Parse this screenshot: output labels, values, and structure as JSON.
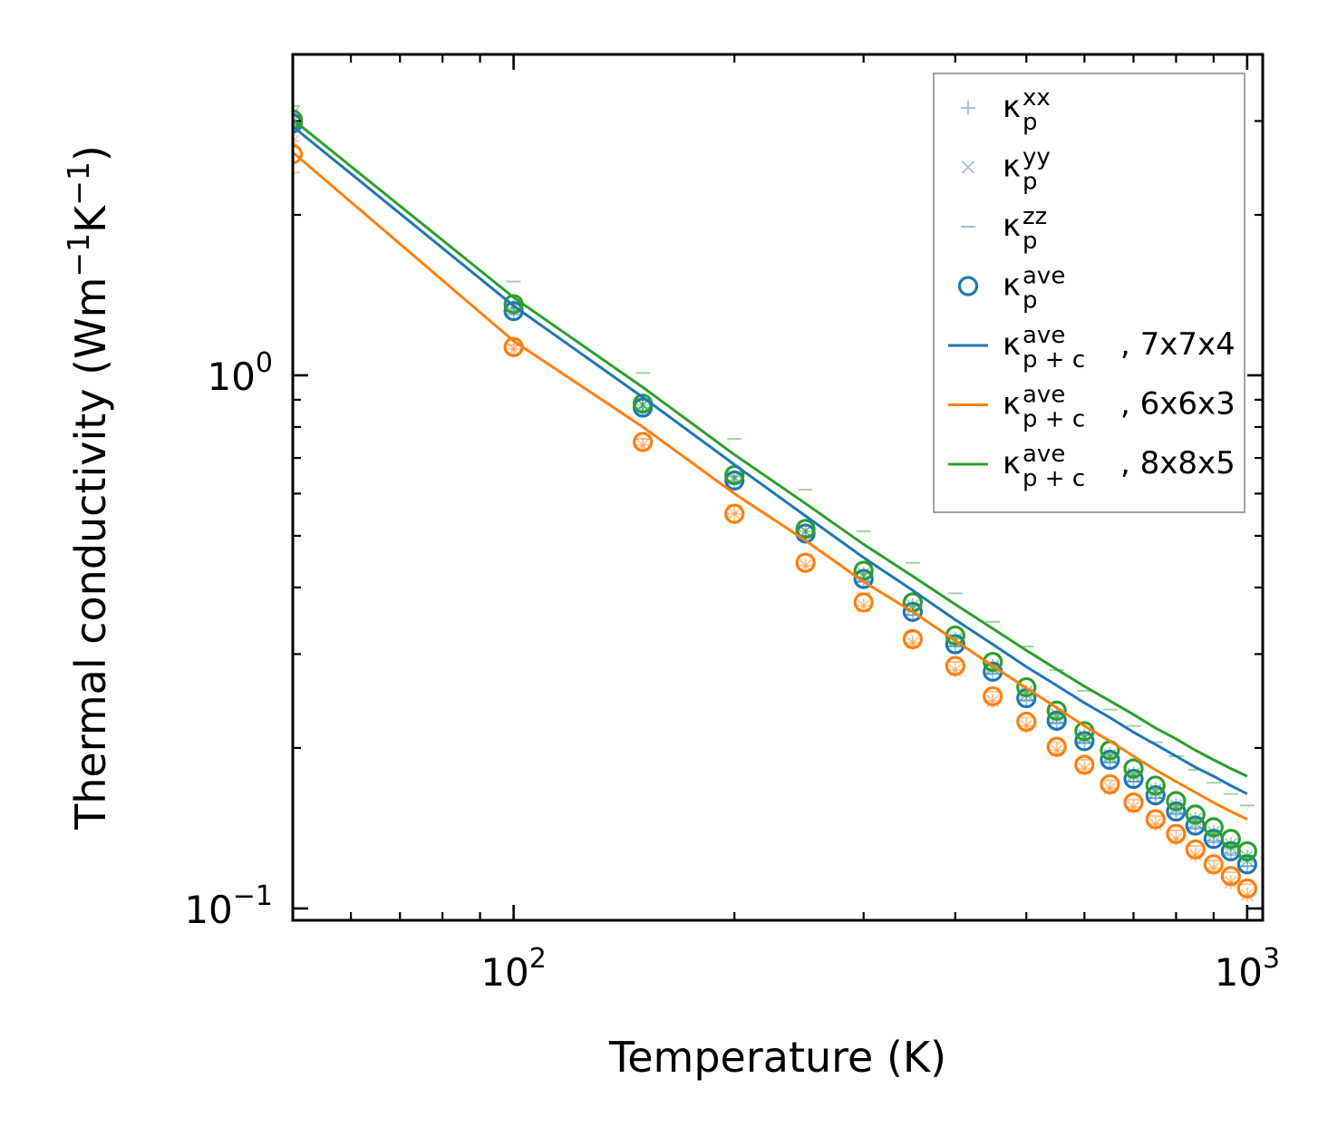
{
  "chart_data": {
    "type": "scatter",
    "xscale": "log",
    "yscale": "log",
    "xlabel": "Temperature (K)",
    "ylabel_parts": {
      "base": "Thermal conductivity (Wm",
      "exp1": "−1",
      "mid": "K",
      "exp2": "−1",
      "end": ")"
    },
    "xlim": [
      50,
      1050
    ],
    "ylim": [
      0.095,
      4.0
    ],
    "xticks": [
      {
        "value": 100,
        "base": "10",
        "exp": "2"
      },
      {
        "value": 1000,
        "base": "10",
        "exp": "3"
      }
    ],
    "yticks": [
      {
        "value": 0.1,
        "base": "10",
        "exp": "−1"
      },
      {
        "value": 1.0,
        "base": "10",
        "exp": "0"
      }
    ],
    "temperatures": [
      50,
      100,
      150,
      200,
      250,
      300,
      350,
      400,
      450,
      500,
      550,
      600,
      650,
      700,
      750,
      800,
      850,
      900,
      950,
      1000
    ],
    "colors": {
      "blue": "#1f77b4",
      "orange": "#ff7f0e",
      "green": "#2ca02c"
    },
    "series": [
      {
        "name": "7x7x4",
        "color": "#1f77b4",
        "kxx": [
          2.95,
          1.32,
          0.87,
          0.63,
          0.5,
          0.41,
          0.355,
          0.31,
          0.275,
          0.245,
          0.222,
          0.205,
          0.188,
          0.173,
          0.161,
          0.151,
          0.142,
          0.134,
          0.127,
          0.12
        ],
        "kyy": [
          3.1,
          1.35,
          0.88,
          0.64,
          0.51,
          0.42,
          0.365,
          0.318,
          0.282,
          0.252,
          0.228,
          0.209,
          0.192,
          0.177,
          0.165,
          0.154,
          0.145,
          0.137,
          0.13,
          0.123
        ],
        "kzz": [
          2.95,
          1.3,
          0.86,
          0.63,
          0.5,
          0.41,
          0.355,
          0.31,
          0.276,
          0.246,
          0.223,
          0.204,
          0.188,
          0.173,
          0.161,
          0.15,
          0.141,
          0.133,
          0.126,
          0.12
        ],
        "kave": [
          2.97,
          1.32,
          0.87,
          0.635,
          0.505,
          0.415,
          0.36,
          0.313,
          0.278,
          0.248,
          0.225,
          0.206,
          0.19,
          0.175,
          0.163,
          0.152,
          0.143,
          0.135,
          0.128,
          0.121
        ],
        "kpc": [
          2.93,
          1.35,
          0.91,
          0.68,
          0.545,
          0.455,
          0.395,
          0.348,
          0.313,
          0.284,
          0.262,
          0.243,
          0.228,
          0.214,
          0.203,
          0.193,
          0.184,
          0.177,
          0.17,
          0.164
        ]
      },
      {
        "name": "6x6x3",
        "color": "#ff7f0e",
        "kxx": [
          2.75,
          1.12,
          0.74,
          0.55,
          0.44,
          0.37,
          0.315,
          0.28,
          0.245,
          0.22,
          0.198,
          0.183,
          0.168,
          0.155,
          0.144,
          0.135,
          0.126,
          0.119,
          0.112,
          0.106
        ],
        "kyy": [
          2.75,
          1.12,
          0.74,
          0.55,
          0.44,
          0.37,
          0.315,
          0.28,
          0.245,
          0.22,
          0.198,
          0.183,
          0.168,
          0.155,
          0.144,
          0.135,
          0.126,
          0.119,
          0.112,
          0.106
        ],
        "kzz": [
          2.4,
          1.14,
          0.76,
          0.57,
          0.46,
          0.39,
          0.33,
          0.29,
          0.255,
          0.228,
          0.205,
          0.19,
          0.174,
          0.16,
          0.149,
          0.14,
          0.131,
          0.123,
          0.117,
          0.111
        ],
        "kave": [
          2.6,
          1.13,
          0.75,
          0.55,
          0.445,
          0.375,
          0.32,
          0.285,
          0.25,
          0.224,
          0.201,
          0.186,
          0.171,
          0.158,
          0.147,
          0.138,
          0.129,
          0.121,
          0.115,
          0.109
        ],
        "kpc": [
          2.62,
          1.16,
          0.8,
          0.6,
          0.49,
          0.41,
          0.36,
          0.318,
          0.285,
          0.259,
          0.238,
          0.22,
          0.206,
          0.193,
          0.182,
          0.173,
          0.165,
          0.158,
          0.152,
          0.147
        ]
      },
      {
        "name": "8x8x5",
        "color": "#2ca02c",
        "kxx": [
          3.0,
          1.34,
          0.88,
          0.645,
          0.51,
          0.425,
          0.37,
          0.32,
          0.285,
          0.255,
          0.231,
          0.211,
          0.194,
          0.179,
          0.167,
          0.156,
          0.147,
          0.139,
          0.132,
          0.125
        ],
        "kyy": [
          3.0,
          1.34,
          0.88,
          0.645,
          0.51,
          0.425,
          0.37,
          0.32,
          0.285,
          0.255,
          0.231,
          0.211,
          0.194,
          0.179,
          0.167,
          0.156,
          0.147,
          0.139,
          0.132,
          0.125
        ],
        "kzz": [
          3.2,
          1.5,
          1.01,
          0.76,
          0.61,
          0.51,
          0.445,
          0.39,
          0.345,
          0.31,
          0.28,
          0.256,
          0.236,
          0.22,
          0.205,
          0.193,
          0.182,
          0.172,
          0.164,
          0.156
        ],
        "kave": [
          3.02,
          1.36,
          0.885,
          0.65,
          0.515,
          0.43,
          0.375,
          0.325,
          0.29,
          0.26,
          0.235,
          0.215,
          0.198,
          0.183,
          0.17,
          0.159,
          0.15,
          0.142,
          0.135,
          0.128
        ],
        "kpc": [
          3.02,
          1.4,
          0.95,
          0.71,
          0.575,
          0.482,
          0.42,
          0.372,
          0.335,
          0.305,
          0.281,
          0.261,
          0.245,
          0.231,
          0.218,
          0.208,
          0.198,
          0.19,
          0.183,
          0.177
        ]
      }
    ],
    "legend": {
      "location": "top-right",
      "entries": [
        {
          "kind": "plus",
          "sup": "xx",
          "sub": "p",
          "suffix": ""
        },
        {
          "kind": "cross",
          "sup": "yy",
          "sub": "p",
          "suffix": ""
        },
        {
          "kind": "dash",
          "sup": "zz",
          "sub": "p",
          "suffix": ""
        },
        {
          "kind": "circle",
          "sup": "ave",
          "sub": "p",
          "suffix": ""
        },
        {
          "kind": "line",
          "series": 0,
          "sup": "ave",
          "sub": "p + c",
          "suffix": ", 7x7x4"
        },
        {
          "kind": "line",
          "series": 1,
          "sup": "ave",
          "sub": "p + c",
          "suffix": ", 6x6x3"
        },
        {
          "kind": "line",
          "series": 2,
          "sup": "ave",
          "sub": "p + c",
          "suffix": ", 8x8x5"
        }
      ]
    }
  }
}
